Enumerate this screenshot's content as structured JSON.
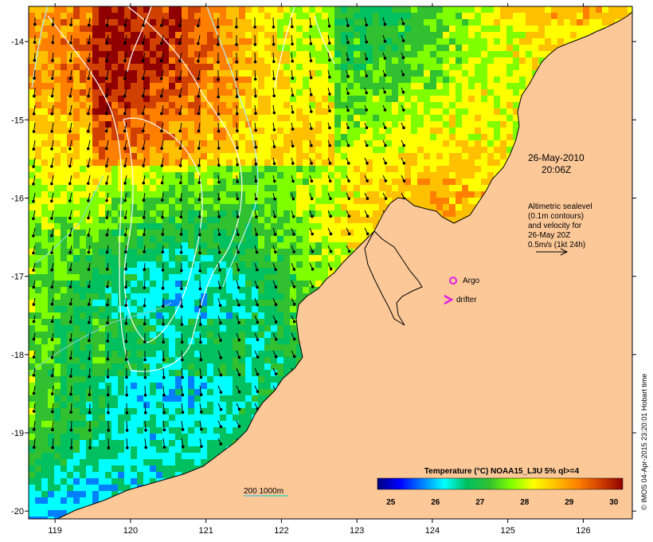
{
  "map": {
    "lon_range": [
      118.65,
      126.65
    ],
    "lat_range": [
      -20.1,
      -13.55
    ],
    "lon_ticks": [
      "119",
      "120",
      "121",
      "122",
      "123",
      "124",
      "125",
      "126"
    ],
    "lat_ticks": [
      "-14",
      "-15",
      "-16",
      "-17",
      "-18",
      "-19",
      "-20"
    ],
    "land_color": "#fcc898"
  },
  "date": {
    "line1": "26-May-2010",
    "line2": "20:06Z"
  },
  "altimetry": {
    "line1": "Altimetric sealevel",
    "line2": "(0.1m contours)",
    "line3": "and velocity for",
    "line4": "26-May 20Z",
    "line5": "0.5m/s (1kt 24h)"
  },
  "legend": {
    "argo": "Argo",
    "drifter": "drifter",
    "bathy": "200  1000m"
  },
  "colorbar": {
    "title": "Temperature (°C) NOAA15_L3U 5% ql>=4",
    "ticks": [
      "25",
      "26",
      "27",
      "28",
      "29",
      "30"
    ],
    "range": [
      24.7,
      30.2
    ],
    "colors": [
      "#00007f",
      "#0000ff",
      "#007fff",
      "#00ffff",
      "#00c060",
      "#30c030",
      "#7fff00",
      "#ffff00",
      "#ffc000",
      "#ff7f00",
      "#d04000",
      "#900000"
    ]
  },
  "credit": "© IMOS 04-Apr-2015 23:20:01 Hobart time"
}
